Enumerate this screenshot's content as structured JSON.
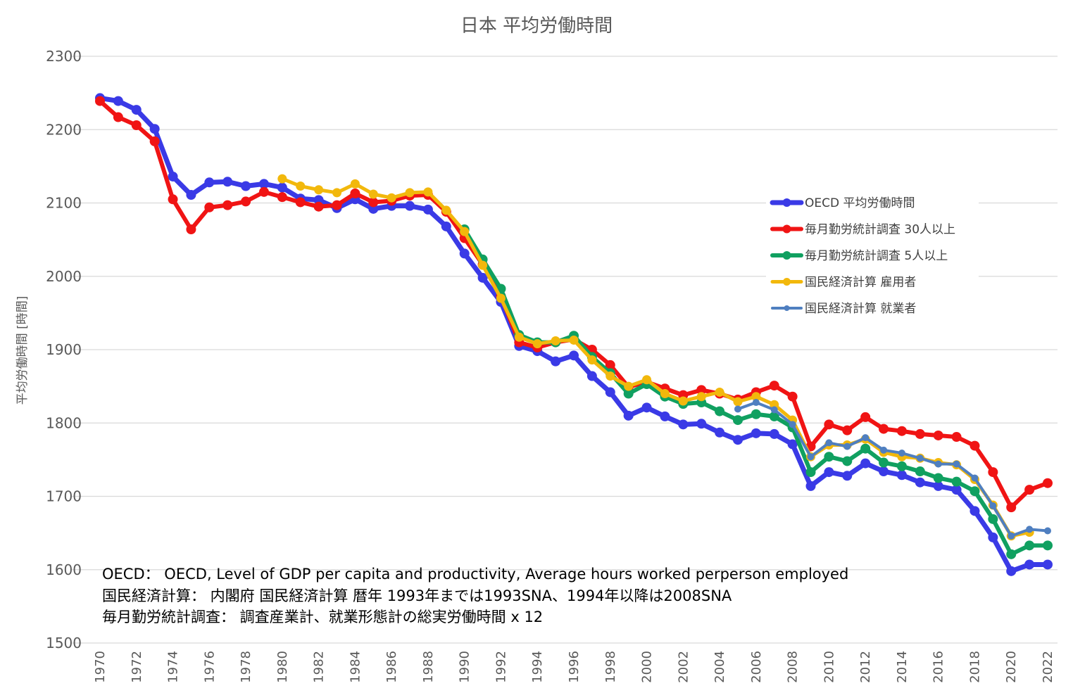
{
  "chart_data": {
    "type": "line",
    "title": "日本 平均労働時間",
    "xlabel": "",
    "ylabel": "平均労働時間 [時間]",
    "ylim": [
      1500,
      2300
    ],
    "xlim": [
      1970,
      2022
    ],
    "yticks": [
      "1500",
      "1600",
      "1700",
      "1800",
      "1900",
      "2000",
      "2100",
      "2200",
      "2300"
    ],
    "xticks": [
      "1970",
      "1972",
      "1974",
      "1976",
      "1978",
      "1980",
      "1982",
      "1984",
      "1986",
      "1988",
      "1990",
      "1992",
      "1994",
      "1996",
      "1998",
      "2000",
      "2002",
      "2004",
      "2006",
      "2008",
      "2010",
      "2012",
      "2014",
      "2016",
      "2018",
      "2020",
      "2022"
    ],
    "grid": true,
    "legend_position": "upper-right",
    "x": [
      1970,
      1971,
      1972,
      1973,
      1974,
      1975,
      1976,
      1977,
      1978,
      1979,
      1980,
      1981,
      1982,
      1983,
      1984,
      1985,
      1986,
      1987,
      1988,
      1989,
      1990,
      1991,
      1992,
      1993,
      1994,
      1995,
      1996,
      1997,
      1998,
      1999,
      2000,
      2001,
      2002,
      2003,
      2004,
      2005,
      2006,
      2007,
      2008,
      2009,
      2010,
      2011,
      2012,
      2013,
      2014,
      2015,
      2016,
      2017,
      2018,
      2019,
      2020,
      2021,
      2022
    ],
    "series": [
      {
        "name": "OECD 平均労働時間",
        "color": "#3a3ae6",
        "values": [
          2243,
          2239,
          2227,
          2201,
          2136,
          2111,
          2128,
          2129,
          2123,
          2126,
          2121,
          2106,
          2104,
          2093,
          2105,
          2092,
          2096,
          2096,
          2091,
          2068,
          2031,
          1998,
          1965,
          1905,
          1898,
          1884,
          1892,
          1864,
          1842,
          1810,
          1821,
          1809,
          1798,
          1799,
          1787,
          1777,
          1786,
          1785,
          1771,
          1714,
          1733,
          1728,
          1745,
          1734,
          1729,
          1719,
          1714,
          1709,
          1680,
          1644,
          1598,
          1607,
          1607
        ]
      },
      {
        "name": "毎月勤労統計調査 30人以上",
        "color": "#f01414",
        "values": [
          2239,
          2217,
          2206,
          2184,
          2105,
          2064,
          2094,
          2097,
          2102,
          2115,
          2108,
          2101,
          2095,
          2097,
          2113,
          2101,
          2103,
          2110,
          2111,
          2088,
          2052,
          2016,
          1973,
          1910,
          1903,
          1910,
          1914,
          1900,
          1879,
          1849,
          1856,
          1847,
          1838,
          1845,
          1840,
          1832,
          1842,
          1851,
          1836,
          1768,
          1798,
          1790,
          1808,
          1792,
          1789,
          1785,
          1783,
          1781,
          1769,
          1733,
          1685,
          1709,
          1718
        ]
      },
      {
        "name": "毎月勤労統計調査 5人以上",
        "color": "#10a060",
        "values": [
          null,
          null,
          null,
          null,
          null,
          null,
          null,
          null,
          null,
          null,
          null,
          null,
          null,
          null,
          null,
          null,
          null,
          null,
          null,
          null,
          2064,
          2023,
          1983,
          1920,
          1910,
          1910,
          1919,
          1890,
          1868,
          1840,
          1853,
          1836,
          1826,
          1828,
          1816,
          1804,
          1812,
          1809,
          1794,
          1733,
          1754,
          1748,
          1765,
          1746,
          1741,
          1734,
          1725,
          1720,
          1707,
          1669,
          1621,
          1633,
          1633
        ]
      },
      {
        "name": "国民経済計算 雇用者",
        "color": "#f2b80c",
        "values": [
          null,
          null,
          null,
          null,
          null,
          null,
          null,
          null,
          null,
          null,
          2133,
          2123,
          2118,
          2114,
          2126,
          2112,
          2107,
          2114,
          2115,
          2090,
          2061,
          2015,
          1970,
          1917,
          1908,
          1912,
          1913,
          1886,
          1864,
          1850,
          1859,
          1840,
          1830,
          1836,
          1842,
          1829,
          1836,
          1825,
          1804,
          1754,
          1770,
          1770,
          1778,
          1760,
          1754,
          1752,
          1746,
          1743,
          1723,
          1688,
          1646,
          1651,
          null
        ]
      },
      {
        "name": "国民経済計算 就業者",
        "color": "#4f7fc0",
        "values": [
          null,
          null,
          null,
          null,
          null,
          null,
          null,
          null,
          null,
          null,
          null,
          null,
          null,
          null,
          null,
          null,
          null,
          null,
          null,
          null,
          null,
          null,
          null,
          null,
          null,
          null,
          null,
          null,
          null,
          null,
          null,
          null,
          null,
          null,
          null,
          1819,
          1828,
          1818,
          1798,
          1754,
          1773,
          1768,
          1780,
          1763,
          1759,
          1752,
          1744,
          1744,
          1725,
          1687,
          1646,
          1655,
          1653
        ]
      }
    ],
    "annotations": [
      "OECD： OECD, Level of GDP per capita and productivity, Average hours worked perperson employed",
      "国民経済計算： 内閣府 国民経済計算 暦年 1993年までは1993SNA、1994年以降は2008SNA",
      "毎月勤労統計調査： 調査産業計、就業形態計の総実労働時間 x 12"
    ]
  }
}
